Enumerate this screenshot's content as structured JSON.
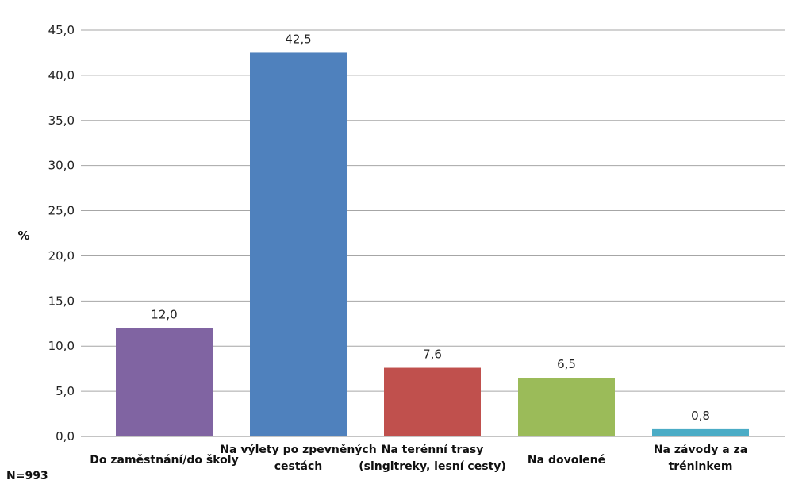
{
  "chart_data": {
    "type": "bar",
    "title": "",
    "xlabel": "",
    "ylabel": "%",
    "ylim": [
      0,
      45
    ],
    "yticks": [
      "0,0",
      "5,0",
      "10,0",
      "15,0",
      "20,0",
      "25,0",
      "30,0",
      "35,0",
      "40,0",
      "45,0"
    ],
    "grid": true,
    "legend": "none",
    "categories": [
      [
        "Do zaměstnání/do školy"
      ],
      [
        "Na výlety po zpevněných",
        "cestách"
      ],
      [
        "Na terénní trasy",
        "(singltreky, lesní cesty)"
      ],
      [
        "Na dovolené"
      ],
      [
        "Na závody a za",
        "tréninkem"
      ]
    ],
    "values": [
      12.0,
      42.5,
      7.6,
      6.5,
      0.8
    ],
    "value_labels": [
      "12,0",
      "42,5",
      "7,6",
      "6,5",
      "0,8"
    ],
    "colors": [
      "#8064A2",
      "#4F81BD",
      "#C0504D",
      "#9BBB59",
      "#4BACC6"
    ],
    "annotations": {
      "sample_size": "N=993"
    }
  }
}
